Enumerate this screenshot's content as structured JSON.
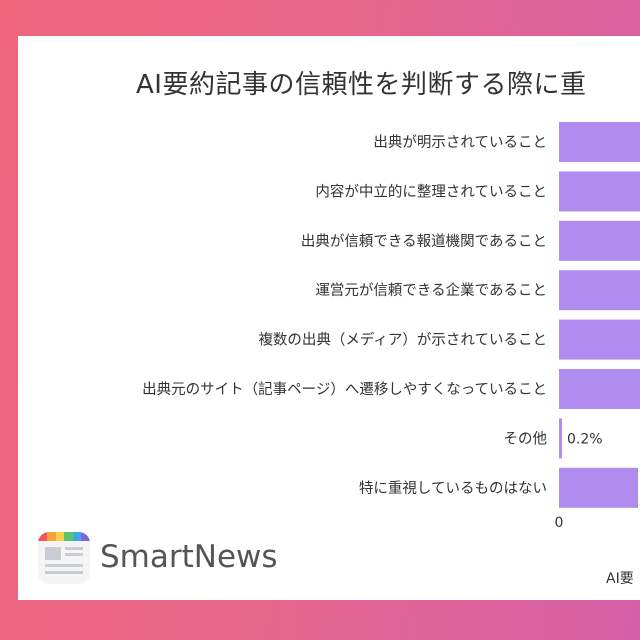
{
  "chart_data": {
    "type": "bar",
    "orientation": "horizontal",
    "title": "AI要約記事の信頼性を判断する際に重",
    "categories": [
      "出典が明示されていること",
      "内容が中立的に整理されていること",
      "出典が信頼できる報道機関であること",
      "運営元が信頼できる企業であること",
      "複数の出典（メディア）が示されていること",
      "出典元のサイト（記事ページ）へ遷移しやすくなっていること",
      "その他",
      "特に重視しているものはない"
    ],
    "values": [
      null,
      null,
      null,
      null,
      null,
      null,
      0.2,
      null
    ],
    "value_labels": [
      "",
      "",
      "",
      "",
      "",
      "",
      "0.2%",
      ""
    ],
    "bar_color": "#b08cef",
    "x_ticks": [
      "0"
    ],
    "grid": false
  },
  "brand": {
    "name": "SmartNews",
    "icon": "smartnews-logo-icon"
  },
  "footnote": "AI要"
}
